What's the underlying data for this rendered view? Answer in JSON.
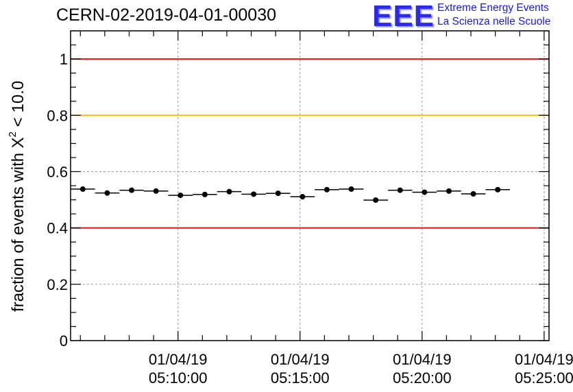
{
  "page": {
    "title": "CERN-02-2019-04-01-00030",
    "logo": {
      "mark": "EEE",
      "line1": "Extreme Energy Events",
      "line2": "La Scienza nelle Scuole"
    }
  },
  "chart_data": {
    "type": "scatter",
    "title": "CERN-02-2019-04-01-00030",
    "ylabel_main": "fraction of events with ",
    "ylabel_symbol": "X",
    "ylabel_sup": "2",
    "ylabel_tail": " < 10.0",
    "ylim": [
      0,
      1.1
    ],
    "yticks": [
      0,
      0.2,
      0.4,
      0.6,
      0.8,
      1
    ],
    "ytick_labels": [
      "0",
      "0.2",
      "0.4",
      "0.6",
      "0.8",
      "1"
    ],
    "xlim_minutes": [
      5.6,
      25.2
    ],
    "xticks": [
      {
        "minute": 10,
        "date": "01/04/19",
        "time": "05:10:00"
      },
      {
        "minute": 15,
        "date": "01/04/19",
        "time": "05:15:00"
      },
      {
        "minute": 20,
        "date": "01/04/19",
        "time": "05:20:00"
      },
      {
        "minute": 25,
        "date": "01/04/19",
        "time": "05:25:00"
      }
    ],
    "grid": true,
    "reference_lines": [
      {
        "y": 1.0,
        "color": "#e8140c"
      },
      {
        "y": 0.8,
        "color": "#f5c000"
      },
      {
        "y": 0.4,
        "color": "#e8140c"
      }
    ],
    "bin_width_minutes": 1,
    "points": [
      {
        "minute": 6.1,
        "y": 0.538
      },
      {
        "minute": 7.1,
        "y": 0.524
      },
      {
        "minute": 8.1,
        "y": 0.534
      },
      {
        "minute": 9.1,
        "y": 0.531
      },
      {
        "minute": 10.1,
        "y": 0.516
      },
      {
        "minute": 11.1,
        "y": 0.519
      },
      {
        "minute": 12.1,
        "y": 0.529
      },
      {
        "minute": 13.1,
        "y": 0.52
      },
      {
        "minute": 14.1,
        "y": 0.523
      },
      {
        "minute": 15.1,
        "y": 0.511
      },
      {
        "minute": 16.1,
        "y": 0.536
      },
      {
        "minute": 17.1,
        "y": 0.538
      },
      {
        "minute": 18.1,
        "y": 0.499
      },
      {
        "minute": 19.1,
        "y": 0.534
      },
      {
        "minute": 20.1,
        "y": 0.527
      },
      {
        "minute": 21.1,
        "y": 0.531
      },
      {
        "minute": 22.1,
        "y": 0.521
      },
      {
        "minute": 23.1,
        "y": 0.536
      }
    ],
    "colors": {
      "marker": "#000000",
      "grid": "#999999",
      "axis": "#000000"
    }
  }
}
